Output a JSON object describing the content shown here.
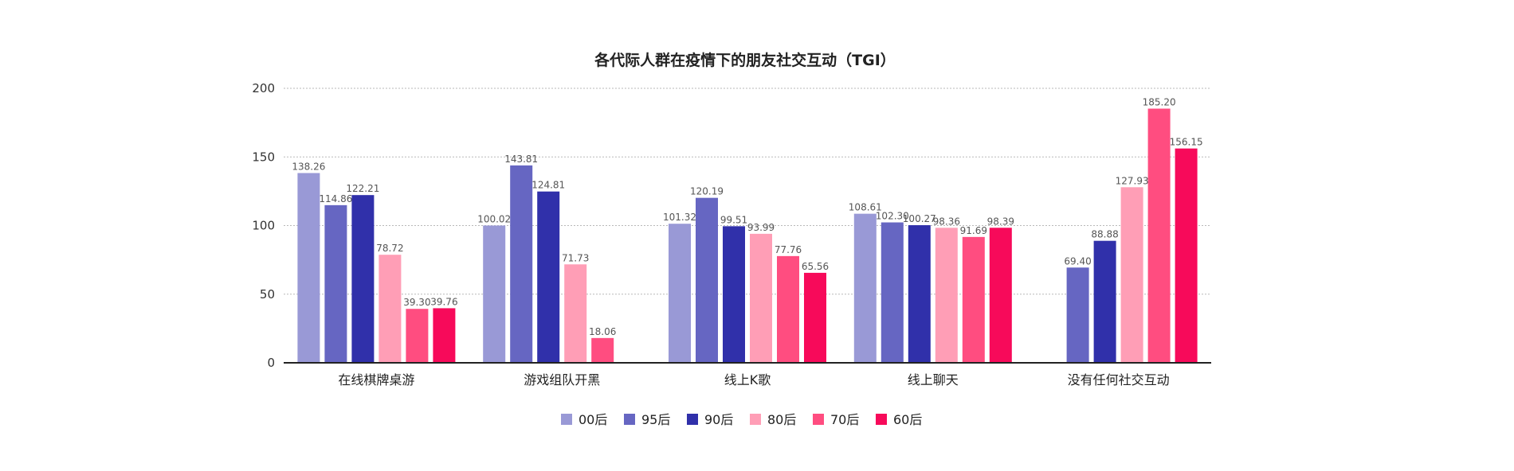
{
  "chart_data": {
    "type": "bar",
    "title": "各代际人群在疫情下的朋友社交互动（TGI）",
    "xlabel": "",
    "ylabel": "",
    "ylim": [
      0,
      200
    ],
    "yticks": [
      0,
      50,
      100,
      150,
      200
    ],
    "grid": true,
    "legend_position": "bottom",
    "categories": [
      "在线棋牌桌游",
      "游戏组队开黑",
      "线上K歌",
      "线上聊天",
      "没有任何社交互动"
    ],
    "series": [
      {
        "name": "00后",
        "color": "#9999d6",
        "values": [
          138.26,
          100.02,
          101.32,
          108.61,
          null
        ]
      },
      {
        "name": "95后",
        "color": "#6666c2",
        "values": [
          114.86,
          143.81,
          120.19,
          102.3,
          69.4
        ]
      },
      {
        "name": "90后",
        "color": "#3030aa",
        "values": [
          122.21,
          124.81,
          99.51,
          100.27,
          88.88
        ]
      },
      {
        "name": "80后",
        "color": "#ff9eb6",
        "values": [
          78.72,
          71.73,
          93.99,
          98.36,
          127.93
        ]
      },
      {
        "name": "70后",
        "color": "#ff4d80",
        "values": [
          39.3,
          18.06,
          77.76,
          91.69,
          185.2
        ]
      },
      {
        "name": "60后",
        "color": "#f70a5a",
        "values": [
          39.76,
          null,
          65.56,
          98.39,
          156.15
        ]
      }
    ]
  }
}
